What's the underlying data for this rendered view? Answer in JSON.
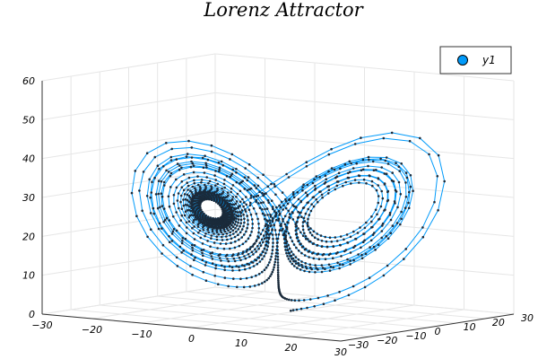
{
  "chart_data": {
    "type": "line",
    "title": "Lorenz Attractor",
    "xlabel": "",
    "ylabel": "",
    "zlabel": "",
    "xlim": [
      -30,
      30
    ],
    "ylim": [
      -30,
      30
    ],
    "zlim": [
      0,
      60
    ],
    "xticks": [
      "−30",
      "−20",
      "−10",
      "0",
      "10",
      "20",
      "30"
    ],
    "yticks": [
      "−30",
      "−20",
      "−10",
      "0",
      "10",
      "20",
      "30"
    ],
    "zticks": [
      "0",
      "10",
      "20",
      "30",
      "40",
      "50",
      "60"
    ],
    "grid": true,
    "legend_position": "top-right",
    "marker": "circle",
    "line_color": "#009AFA",
    "marker_color": "#1a2a3a",
    "series": [
      {
        "name": "y1",
        "color": "#009AFA",
        "generator": {
          "system": "lorenz",
          "sigma": 10,
          "rho": 28,
          "beta": 2.6667,
          "initial": [
            2,
            1,
            1
          ],
          "dt": 0.02,
          "steps": 1500
        }
      }
    ]
  }
}
